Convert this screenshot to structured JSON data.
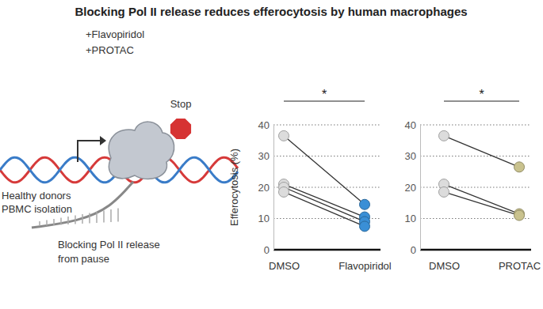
{
  "header": {
    "title": "Blocking Pol II release reduces efferocytosis by human macrophages"
  },
  "illustration": {
    "drug_labels": [
      "+Flavopiridol",
      "+PROTAC"
    ],
    "stop_label": "Stop",
    "source_label": [
      "Healthy donors",
      "PBMC isolation"
    ],
    "caption": [
      "Blocking Pol II release",
      "from pause"
    ]
  },
  "chart_data": [
    {
      "type": "paired_dot",
      "y_label": "Efferocytosis (%)",
      "categories": [
        "DMSO",
        "Flavopiridol"
      ],
      "colors": [
        "#dcdcdc",
        "#3a8fd6"
      ],
      "marker": "circle",
      "ylim": [
        0,
        40
      ],
      "yticks": [
        0,
        10,
        20,
        30,
        40
      ],
      "grid": true,
      "annotations": [
        "*"
      ],
      "series": [
        {
          "values": [
            36.5,
            14.5
          ]
        },
        {
          "values": [
            21,
            10.5
          ]
        },
        {
          "values": [
            20,
            9
          ]
        },
        {
          "values": [
            18.5,
            7.5
          ]
        }
      ]
    },
    {
      "type": "paired_dot",
      "categories": [
        "DMSO",
        "PROTAC"
      ],
      "colors": [
        "#dcdcdc",
        "#c9c28e"
      ],
      "marker": "circle",
      "ylim": [
        0,
        40
      ],
      "yticks": [
        0,
        10,
        20,
        30,
        40
      ],
      "grid": true,
      "annotations": [
        "*"
      ],
      "series": [
        {
          "values": [
            36.5,
            26.5
          ]
        },
        {
          "values": [
            21,
            11.5
          ]
        },
        {
          "values": [
            18.5,
            11
          ]
        }
      ]
    }
  ]
}
